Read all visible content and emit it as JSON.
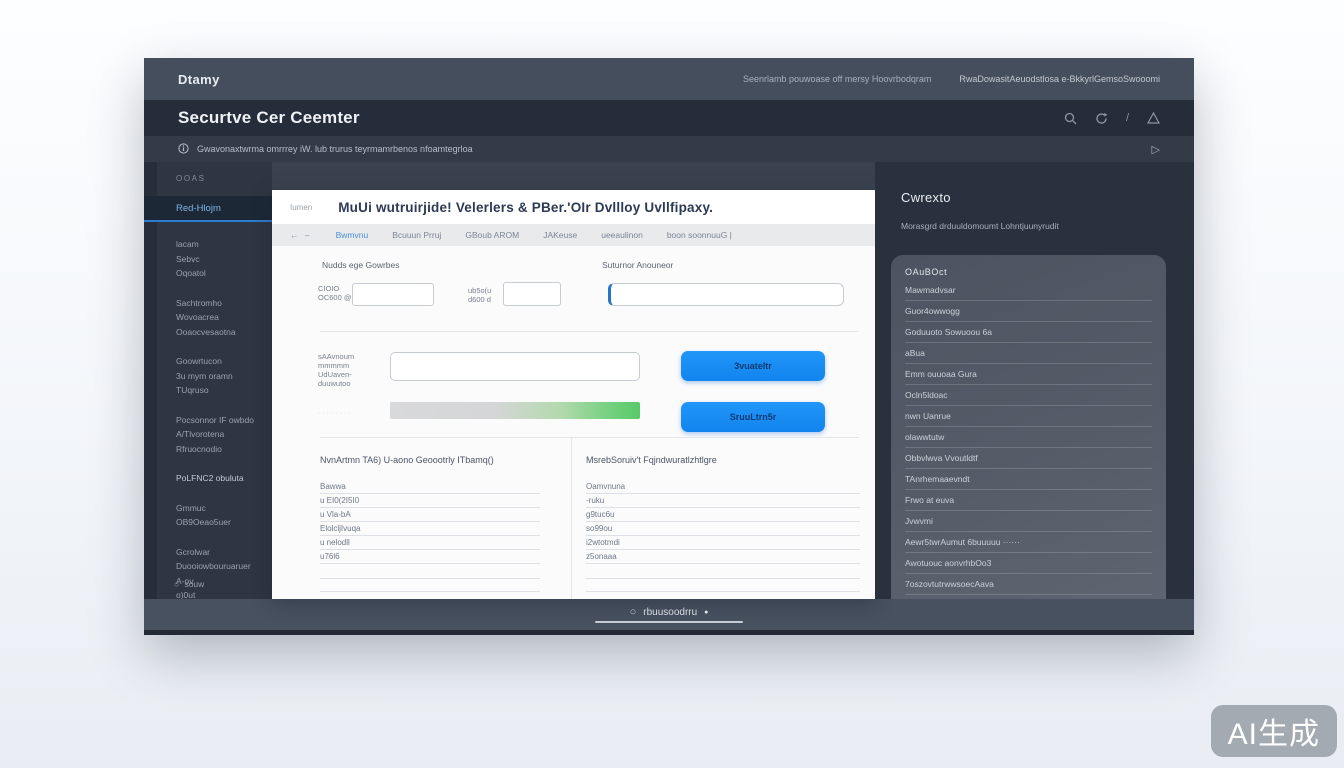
{
  "navbar": {
    "logo": "Dtamy",
    "note": "Seenrlamb pouwoase off mersy Hoovrbodqram",
    "items": [
      "Rwa",
      "Dowasit",
      "Aeuodstlosa e-BkkyrlGemso",
      "Swooomi"
    ]
  },
  "header": {
    "title": "Securtve Cer Ceemter"
  },
  "notification": {
    "text": "Gwavonaxtwrma omrrrey iW. lub trurus teyrmamrbenos nfoamtegrloa",
    "send_glyph": "▷"
  },
  "sidebar": {
    "section_label": "ooas",
    "active_item": "Red-Hlojm",
    "group1": [
      "lacam",
      "Sebvc",
      "Oqoatol"
    ],
    "group2": [
      "Sachtromho",
      "Wovoacrea",
      "Ooaocvesaotna"
    ],
    "group3": [
      "Goowrtucon",
      "3u mym oramn",
      "TUqruso"
    ],
    "group4": [
      "Pocsonnor IF owbdo",
      "A/Tlvorotena",
      "Rfruocnodio"
    ],
    "group5_item": "PoLFNC2 obuluta",
    "group6": [
      "Gmmuc",
      "OB9Oeao5uer"
    ],
    "group7": [
      "Gcrolwar",
      "Duooiowbouruaruer",
      "A-ov",
      "o)0ut"
    ],
    "footer_item": "souw",
    "footer_glyph": "○"
  },
  "modal": {
    "eyebrow": "Iumen",
    "title": "MuUi wutruirjide! Velerlers & PBer.'OIr Dvllloy Uvllfipaxy.",
    "tab_glyphs": "← –",
    "tabs": [
      {
        "label": "Bwmvnu",
        "active": true
      },
      {
        "label": "Bcuuun Prruj",
        "active": false
      },
      {
        "label": "GBoub AROM",
        "active": false
      },
      {
        "label": "JAKeuse",
        "active": false
      },
      {
        "label": "ueeaulinon",
        "active": false
      },
      {
        "label": "boon soonnuuG |",
        "active": false
      }
    ],
    "form": {
      "label_left": "Nudds ege Gowrbes",
      "label_right": "Suturnor Anouneor",
      "field1_lines": [
        "CIOIO",
        "OC600 @"
      ],
      "field2_lines": [
        "ub5o(u",
        "d600 d"
      ],
      "row3_lines": [
        "sAAvnoum",
        "mmmmm",
        "UdUaven-",
        "duuwutoo"
      ],
      "row4_faint": "········",
      "button1": "3vuateltr",
      "button2": "SruuLtrn5r"
    },
    "lists": {
      "left_title": "NvnArtmn TA6) U-aono Geoootrly ITbamq()",
      "left_rows": [
        "Bawwa",
        "u EI0(2I5I0",
        "u Vla-bA",
        "ElolcljIvuqa",
        "u nelodll",
        "u76l6"
      ],
      "right_title": "MsrebSoruiv't Fqjndwuratlzhtlgre",
      "right_rows": [
        "Oamvnuna",
        "-ruku",
        "g9tuc6u",
        "so99ou",
        "i2wtotmdi",
        "z5onaaa"
      ]
    }
  },
  "context_panel": {
    "title": "Cwrexto",
    "subtitle": "Morasgrd drduuldomoumt Lohntjuunyrudit",
    "card_header": "OAuBOct",
    "items": [
      "Mawmadvsar",
      "Guor4owwogg",
      "Goduuoto Sowuoou 6a",
      "aBua",
      "Emm ouuoaa Gura",
      "Ocln5ldoac",
      "nwn Uanrue",
      "olawwtutw",
      "Obbvlwva Vvoutldtf",
      "TAnrhemaaevndt",
      "Frwo at euva",
      "Jvwvmi",
      "Aewr5twrAumut  6buuuuu ······",
      "Awotuouc aonvrhbOo3",
      "7oszovtutrwwsoecAava"
    ]
  },
  "statusbar": {
    "label": "rbuusoodrru",
    "circle_glyph": "○",
    "dot_glyph": "●"
  },
  "watermark": "AI生成",
  "colors": {
    "accent_blue": "#2196f8",
    "active_border": "#2e7ccf",
    "progress_green": "#58c968",
    "navbar": "#454e5c",
    "header": "#262d3a",
    "sidebar": "#2e3643"
  }
}
